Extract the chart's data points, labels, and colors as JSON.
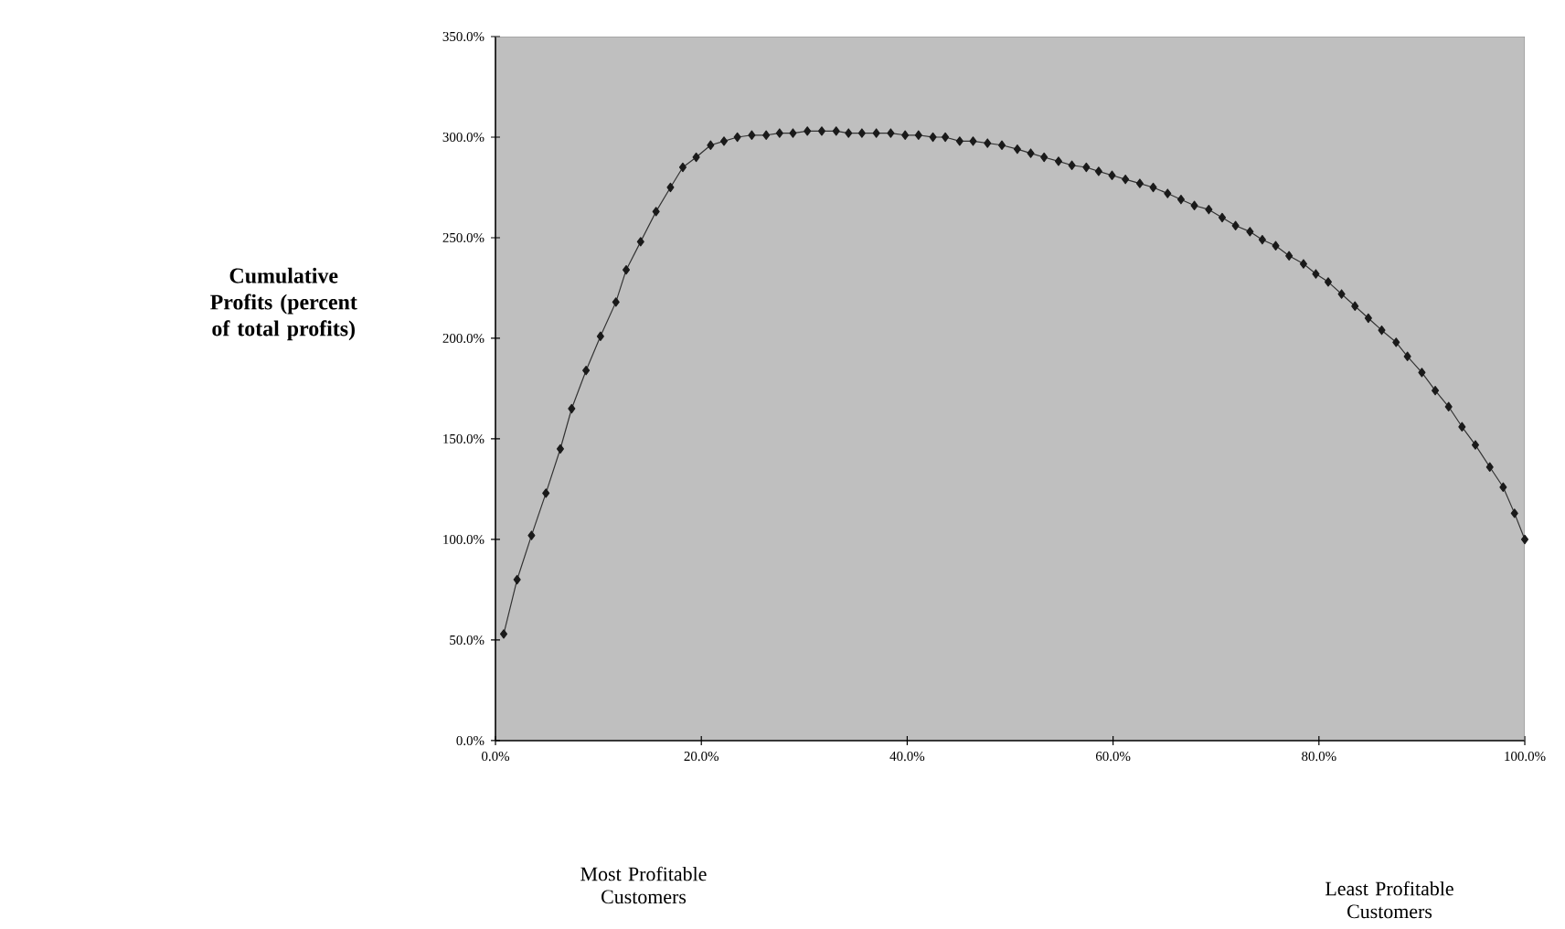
{
  "chart_data": {
    "type": "line",
    "ylabel": "Cumulative Profits (percent of total profits)",
    "annotations": [
      "Most Profitable Customers",
      "Least Profitable Customers"
    ],
    "x": [
      0.8,
      2.1,
      3.5,
      4.9,
      6.3,
      7.4,
      8.8,
      10.2,
      11.7,
      12.7,
      14.1,
      15.6,
      17.0,
      18.2,
      19.5,
      20.9,
      22.2,
      23.5,
      24.9,
      26.3,
      27.6,
      28.9,
      30.3,
      31.7,
      33.1,
      34.3,
      35.6,
      37.0,
      38.4,
      39.8,
      41.1,
      42.5,
      43.7,
      45.1,
      46.4,
      47.8,
      49.2,
      50.7,
      52.0,
      53.3,
      54.7,
      56.0,
      57.4,
      58.6,
      59.9,
      61.2,
      62.6,
      63.9,
      65.3,
      66.6,
      67.9,
      69.3,
      70.6,
      71.9,
      73.3,
      74.5,
      75.8,
      77.1,
      78.5,
      79.7,
      80.9,
      82.2,
      83.5,
      84.8,
      86.1,
      87.5,
      88.6,
      90.0,
      91.3,
      92.6,
      93.9,
      95.2,
      96.6,
      97.9,
      99.0,
      100
    ],
    "series": [
      {
        "color": "#1a1a1a",
        "values": [
          53,
          80,
          102,
          123,
          145,
          165,
          184,
          201,
          218,
          234,
          248,
          263,
          275,
          285,
          290,
          296,
          298,
          300,
          301,
          301,
          302,
          302,
          303,
          303,
          303,
          302,
          302,
          302,
          302,
          301,
          301,
          300,
          300,
          298,
          298,
          297,
          296,
          294,
          292,
          290,
          288,
          286,
          285,
          283,
          281,
          279,
          277,
          275,
          272,
          269,
          266,
          264,
          260,
          256,
          253,
          249,
          246,
          241,
          237,
          232,
          228,
          222,
          216,
          210,
          204,
          198,
          191,
          183,
          174,
          166,
          156,
          147,
          136,
          126,
          113,
          100
        ]
      }
    ],
    "xlim": [
      0,
      100
    ],
    "ylim": [
      0,
      350
    ],
    "xticks": [
      {
        "value": 0,
        "label": "0.0%"
      },
      {
        "value": 20,
        "label": "20.0%"
      },
      {
        "value": 40,
        "label": "40.0%"
      },
      {
        "value": 60,
        "label": "60.0%"
      },
      {
        "value": 80,
        "label": "80.0%"
      },
      {
        "value": 100,
        "label": "100.0%"
      }
    ],
    "yticks": [
      {
        "value": 0,
        "label": "0.0%"
      },
      {
        "value": 50,
        "label": "50.0%"
      },
      {
        "value": 100,
        "label": "100.0%"
      },
      {
        "value": 150,
        "label": "150.0%"
      },
      {
        "value": 200,
        "label": "200.0%"
      },
      {
        "value": 250,
        "label": "250.0%"
      },
      {
        "value": 300,
        "label": "300.0%"
      },
      {
        "value": 350,
        "label": "350.0%"
      }
    ],
    "grid": false,
    "marker": "diamond",
    "line_style": "solid"
  }
}
